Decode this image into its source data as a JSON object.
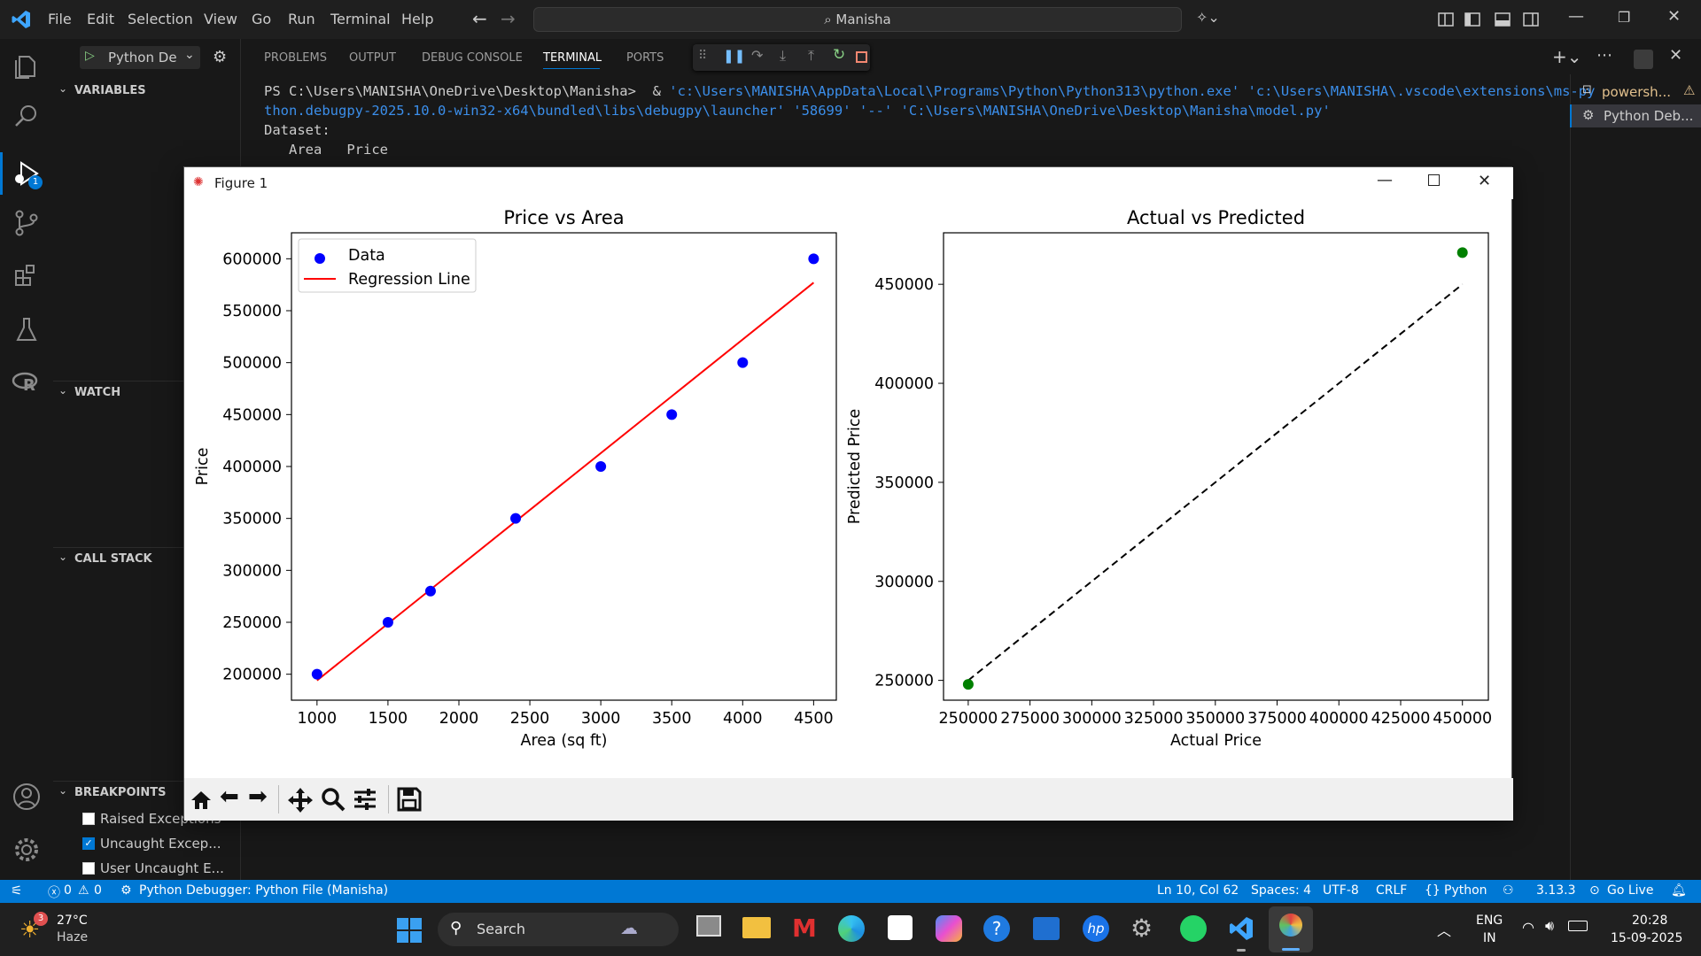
{
  "titlebar": {
    "menus": [
      "File",
      "Edit",
      "Selection",
      "View",
      "Go",
      "Run",
      "Terminal",
      "Help"
    ],
    "search": "Manisha"
  },
  "sidebar": {
    "debug_config": "Python De",
    "variables": "VARIABLES",
    "watch": "WATCH",
    "call_stack": "CALL STACK",
    "breakpoints": "BREAKPOINTS",
    "bp_items": [
      {
        "label": "Raised Exceptions",
        "checked": false
      },
      {
        "label": "Uncaught Excep...",
        "checked": true
      },
      {
        "label": "User Uncaught E...",
        "checked": false
      }
    ],
    "debug_badge": "1"
  },
  "panel": {
    "tabs": [
      "PROBLEMS",
      "OUTPUT",
      "DEBUG CONSOLE",
      "TERMINAL",
      "PORTS"
    ],
    "active_tab": "TERMINAL",
    "terminal": {
      "prompt": "PS C:\\Users\\MANISHA\\OneDrive\\Desktop\\Manisha>  & ",
      "cmd1": "'c:\\Users\\MANISHA\\AppData\\Local\\Programs\\Python\\Python313\\python.exe' 'c:\\Users\\MANISHA\\.vscode\\extensions\\ms-py",
      "cmd2": "thon.debugpy-2025.10.0-win32-x64\\bundled\\libs\\debugpy\\launcher' '58699' '--' 'C:\\Users\\MANISHA\\OneDrive\\Desktop\\Manisha\\model.py'",
      "line3": "Dataset:",
      "line4": "   Area   Price"
    },
    "terminals": [
      "powersh...",
      "Python Deb..."
    ]
  },
  "figure": {
    "window_title": "Figure 1"
  },
  "chart_data": [
    {
      "type": "scatter",
      "title": "Price vs Area",
      "xlabel": "Area (sq ft)",
      "ylabel": "Price",
      "xlim": [
        820,
        4660
      ],
      "ylim": [
        175000,
        625000
      ],
      "xticks": [
        1000,
        1500,
        2000,
        2500,
        3000,
        3500,
        4000,
        4500
      ],
      "yticks": [
        200000,
        250000,
        300000,
        350000,
        400000,
        450000,
        500000,
        550000,
        600000
      ],
      "legend_position": "top-left",
      "series": [
        {
          "name": "Data",
          "kind": "scatter",
          "color": "#0000ff",
          "x": [
            1000,
            1500,
            1800,
            2400,
            3000,
            3500,
            4000,
            4500
          ],
          "y": [
            200000,
            250000,
            280000,
            350000,
            400000,
            450000,
            500000,
            600000
          ]
        },
        {
          "name": "Regression Line",
          "kind": "line",
          "color": "#ff0000",
          "x": [
            1000,
            4500
          ],
          "y": [
            194000,
            577000
          ]
        }
      ]
    },
    {
      "type": "scatter",
      "title": "Actual vs Predicted",
      "xlabel": "Actual Price",
      "ylabel": "Predicted Price",
      "xlim": [
        240000,
        460500
      ],
      "ylim": [
        240000,
        476000
      ],
      "xticks": [
        250000,
        275000,
        300000,
        325000,
        350000,
        375000,
        400000,
        425000,
        450000
      ],
      "yticks": [
        250000,
        300000,
        350000,
        400000,
        450000
      ],
      "series": [
        {
          "kind": "scatter",
          "color": "#008000",
          "x": [
            250000,
            450000
          ],
          "y": [
            248000,
            466000
          ]
        },
        {
          "kind": "dashed-line",
          "color": "#000000",
          "x": [
            250000,
            450000
          ],
          "y": [
            250000,
            450000
          ]
        }
      ]
    }
  ],
  "statusbar": {
    "errors": "0",
    "warnings": "0",
    "debug": "Python Debugger: Python File (Manisha)",
    "position": "Ln 10, Col 62",
    "spaces": "Spaces: 4",
    "encoding": "UTF-8",
    "eol": "CRLF",
    "language": "Python",
    "version": "3.13.3",
    "golive": "Go Live"
  },
  "taskbar": {
    "weather_temp": "27°C",
    "weather_desc": "Haze",
    "weather_badge": "3",
    "search": "Search",
    "lang1": "ENG",
    "lang2": "IN",
    "time": "20:28",
    "date": "15-09-2025"
  },
  "colors": {
    "accent": "#0078d4",
    "terminal_link": "#3b8eea"
  }
}
